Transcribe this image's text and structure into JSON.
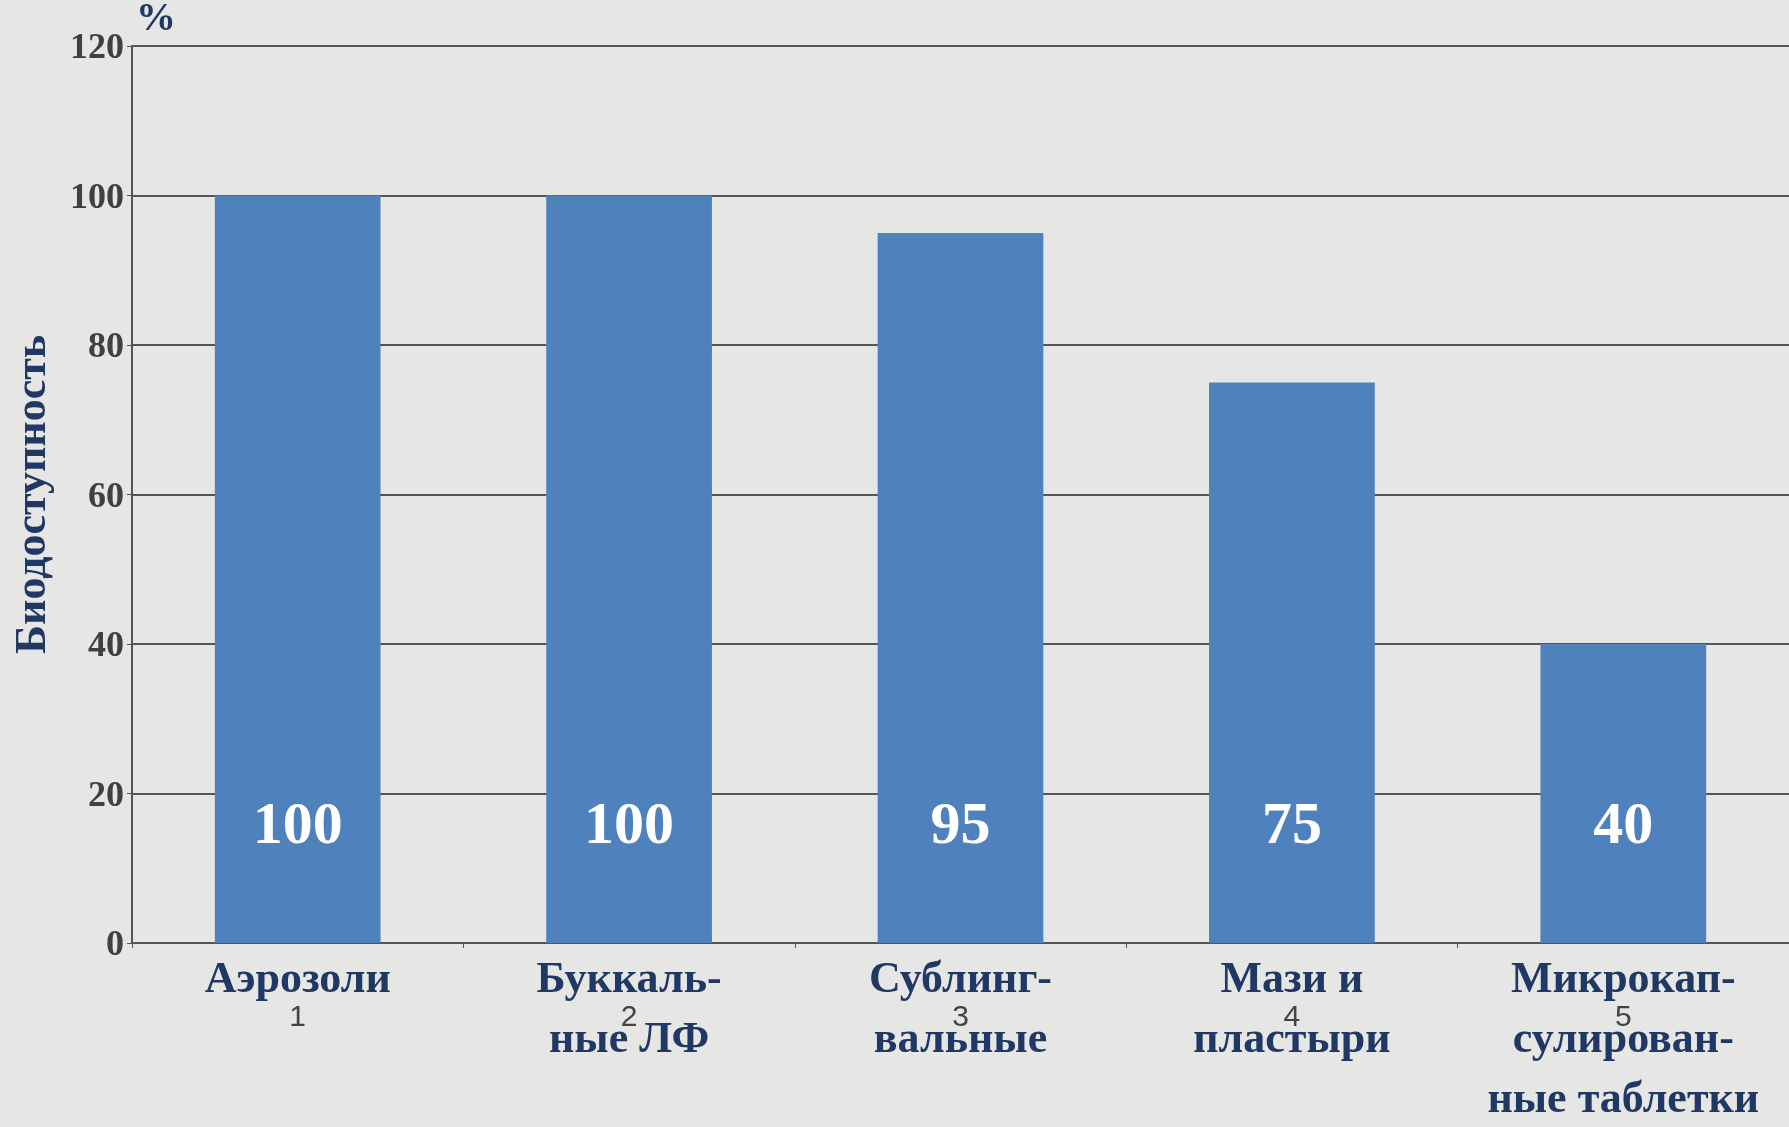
{
  "chart_data": {
    "type": "bar",
    "categories": [
      "Аэрозоли",
      "Буккаль-\nные ЛФ",
      "Сублинг-\nвальные",
      "Мази и\nпластыри",
      "Микрокап-\nсулирован-\nные таблетки"
    ],
    "values": [
      100,
      100,
      95,
      75,
      40
    ],
    "color": "#4f81bd",
    "ylabel": "Биодоступность",
    "ylim": [
      0,
      120
    ],
    "yticks": [
      0,
      20,
      40,
      60,
      80,
      100,
      120
    ],
    "grid": "y",
    "data_labels": true,
    "annotations": [
      "%",
      "1",
      "2",
      "3",
      "4",
      "5"
    ]
  }
}
